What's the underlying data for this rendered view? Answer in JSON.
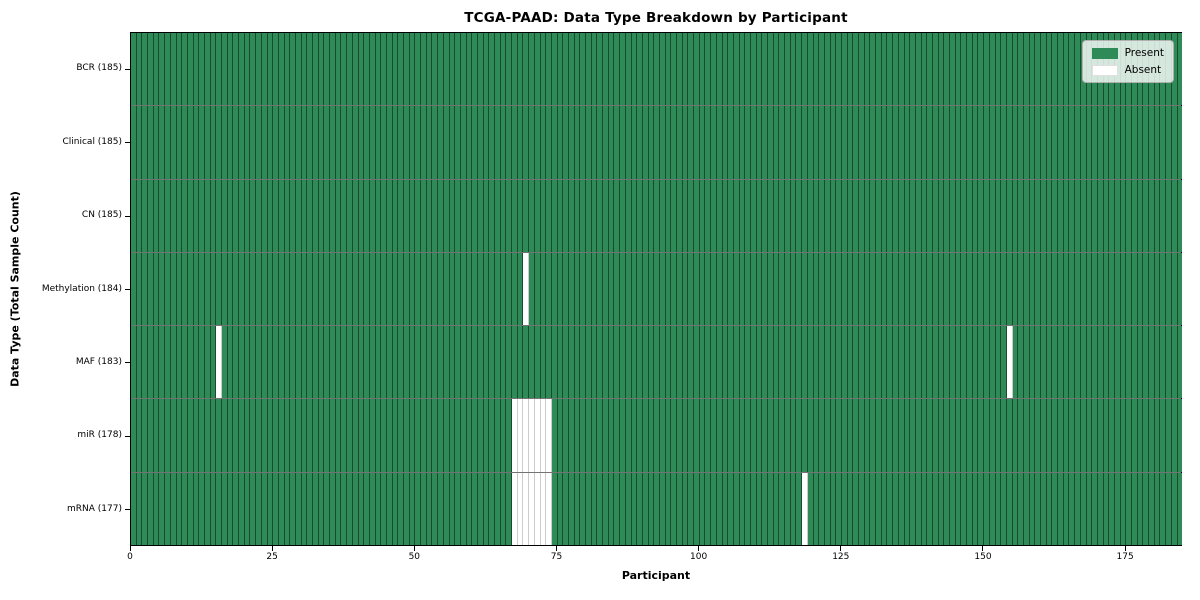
{
  "chart_data": {
    "type": "heatmap",
    "title": "TCGA-PAAD: Data Type Breakdown by Participant",
    "xlabel": "Participant",
    "ylabel": "Data Type (Total Sample Count)",
    "x_ticks": [
      0,
      25,
      50,
      75,
      100,
      125,
      150,
      175
    ],
    "xlim": [
      0,
      185
    ],
    "n_participants": 185,
    "grid": "off",
    "legend_position": "upper right",
    "colors": {
      "present": "#2e8b57",
      "absent": "#ffffff"
    },
    "legend": [
      {
        "label": "Present",
        "state": "present",
        "color": "#2e8b57"
      },
      {
        "label": "Absent",
        "state": "absent",
        "color": "#ffffff"
      }
    ],
    "rows": [
      {
        "label": "BCR (185)",
        "data_type": "BCR",
        "total_samples": 185,
        "absent_participants": []
      },
      {
        "label": "Clinical (185)",
        "data_type": "Clinical",
        "total_samples": 185,
        "absent_participants": []
      },
      {
        "label": "CN (185)",
        "data_type": "CN",
        "total_samples": 185,
        "absent_participants": []
      },
      {
        "label": "Methylation (184)",
        "data_type": "Methylation",
        "total_samples": 184,
        "absent_participants": [
          69
        ]
      },
      {
        "label": "MAF (183)",
        "data_type": "MAF",
        "total_samples": 183,
        "absent_participants": [
          15,
          154
        ]
      },
      {
        "label": "miR (178)",
        "data_type": "miR",
        "total_samples": 178,
        "absent_participants": [
          67,
          68,
          69,
          70,
          71,
          72,
          73
        ]
      },
      {
        "label": "mRNA (177)",
        "data_type": "mRNA",
        "total_samples": 177,
        "absent_participants": [
          67,
          68,
          69,
          70,
          71,
          72,
          73,
          118
        ]
      }
    ]
  }
}
